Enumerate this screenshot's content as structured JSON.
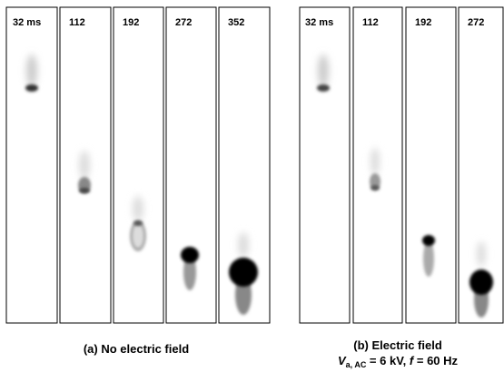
{
  "panel_a": {
    "frames": [
      "32 ms",
      "112",
      "192",
      "272",
      "352"
    ],
    "caption": "(a) No electric field"
  },
  "panel_b": {
    "frames": [
      "32 ms",
      "112",
      "192",
      "272"
    ],
    "caption": "(b) Electric field",
    "condition": {
      "voltage_symbol": "V",
      "voltage_subscript": "a, AC",
      "voltage_value": " = 6 kV, ",
      "frequency_symbol": "f",
      "frequency_value": " = 60 Hz"
    }
  }
}
